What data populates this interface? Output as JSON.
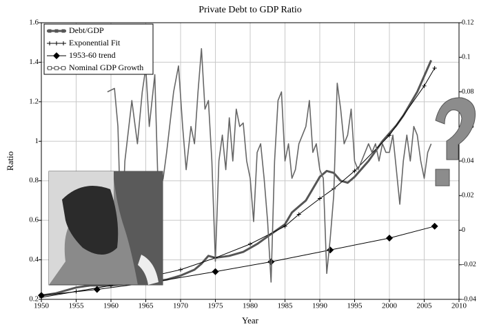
{
  "chart_data": {
    "type": "line",
    "title": "Private Debt to GDP Ratio",
    "x_label": "Year",
    "y_label": "Ratio",
    "xlim": [
      1950,
      2010
    ],
    "xticks": [
      1950,
      1955,
      1960,
      1965,
      1970,
      1975,
      1980,
      1985,
      1990,
      1995,
      2000,
      2005,
      2010
    ],
    "ylim": [
      0.2,
      1.6
    ],
    "yticks": [
      0.2,
      0.4,
      0.6,
      0.8,
      1,
      1.2,
      1.4,
      1.6
    ],
    "y2lim": [
      -0.04,
      0.12
    ],
    "y2ticks": [
      -0.04,
      -0.02,
      0,
      0.02,
      0.04,
      0.06,
      0.08,
      0.1,
      0.12
    ],
    "grid": true,
    "legend": "upper left",
    "series": [
      {
        "name": "Debt/GDP",
        "color": "#555555",
        "x": [
          1950,
          1952,
          1955,
          1957,
          1960,
          1963,
          1966,
          1968,
          1970,
          1972,
          1973,
          1974,
          1975,
          1977,
          1979,
          1981,
          1983,
          1985,
          1986,
          1987,
          1988,
          1989,
          1990,
          1991,
          1992,
          1993,
          1994,
          1995,
          1996,
          1997,
          1998,
          1999,
          2000,
          2001,
          2002,
          2003,
          2004,
          2005,
          2006
        ],
        "values": [
          0.22,
          0.23,
          0.26,
          0.27,
          0.27,
          0.28,
          0.29,
          0.3,
          0.32,
          0.35,
          0.38,
          0.42,
          0.41,
          0.42,
          0.44,
          0.48,
          0.53,
          0.58,
          0.64,
          0.67,
          0.7,
          0.76,
          0.82,
          0.85,
          0.84,
          0.8,
          0.79,
          0.82,
          0.86,
          0.9,
          0.95,
          1.0,
          1.04,
          1.08,
          1.13,
          1.19,
          1.25,
          1.33,
          1.41
        ]
      },
      {
        "name": "Exponential Fit",
        "color": "#000000",
        "x": [
          1950,
          1955,
          1960,
          1965,
          1970,
          1975,
          1980,
          1985,
          1987,
          1990,
          1992,
          1995,
          2000,
          2005,
          2006.5
        ],
        "values": [
          0.21,
          0.24,
          0.27,
          0.31,
          0.35,
          0.41,
          0.48,
          0.57,
          0.63,
          0.71,
          0.76,
          0.85,
          1.03,
          1.28,
          1.37
        ]
      },
      {
        "name": "1953-60 trend",
        "color": "#000000",
        "x": [
          1950,
          1958,
          1966.5,
          1975,
          1983,
          1991.5,
          2000,
          2006.5
        ],
        "values": [
          0.22,
          0.25,
          0.29,
          0.34,
          0.39,
          0.45,
          0.51,
          0.57
        ]
      },
      {
        "name": "Nominal GDP Growth",
        "color": "#666666",
        "axis": "y2",
        "x": [
          1959.5,
          1960.5,
          1961,
          1961.5,
          1962,
          1963,
          1963.8,
          1964.5,
          1965,
          1965.5,
          1966.3,
          1966.8,
          1967.5,
          1968,
          1969,
          1969.7,
          1970.3,
          1970.8,
          1971.5,
          1972,
          1972.5,
          1973,
          1973.5,
          1974,
          1974.5,
          1975,
          1975.5,
          1976,
          1976.5,
          1977,
          1977.5,
          1978,
          1978.5,
          1979,
          1979.5,
          1980,
          1980.5,
          1981,
          1981.5,
          1982,
          1982.5,
          1983,
          1983.5,
          1984,
          1984.5,
          1985,
          1985.5,
          1986,
          1986.5,
          1987,
          1987.5,
          1988,
          1988.5,
          1989,
          1989.5,
          1990,
          1990.5,
          1991,
          1991.5,
          1992,
          1992.5,
          1993,
          1993.5,
          1994,
          1994.5,
          1995,
          1995.5,
          1996,
          1996.5,
          1997,
          1997.5,
          1998,
          1998.5,
          1999,
          1999.5,
          2000,
          2000.5,
          2001,
          2001.5,
          2002,
          2002.5,
          2003,
          2003.5,
          2004,
          2004.5,
          2005,
          2005.5,
          2006
        ],
        "values": [
          0.08,
          0.082,
          0.06,
          -0.01,
          0.04,
          0.075,
          0.05,
          0.08,
          0.094,
          0.06,
          0.09,
          0.02,
          0.03,
          0.045,
          0.08,
          0.095,
          0.06,
          0.035,
          0.06,
          0.05,
          0.08,
          0.105,
          0.07,
          0.075,
          0.04,
          -0.018,
          0.04,
          0.055,
          0.035,
          0.065,
          0.04,
          0.07,
          0.06,
          0.062,
          0.04,
          0.03,
          0.005,
          0.045,
          0.05,
          0.03,
          0.005,
          -0.03,
          0.04,
          0.075,
          0.08,
          0.04,
          0.05,
          0.03,
          0.035,
          0.05,
          0.055,
          0.06,
          0.075,
          0.045,
          0.05,
          0.035,
          0.03,
          -0.025,
          -0.005,
          0.02,
          0.085,
          0.07,
          0.05,
          0.055,
          0.07,
          0.04,
          0.035,
          0.04,
          0.045,
          0.05,
          0.045,
          0.05,
          0.04,
          0.05,
          0.045,
          0.045,
          0.055,
          0.035,
          0.015,
          0.04,
          0.055,
          0.04,
          0.06,
          0.055,
          0.04,
          0.03,
          0.045,
          0.05
        ]
      }
    ]
  }
}
